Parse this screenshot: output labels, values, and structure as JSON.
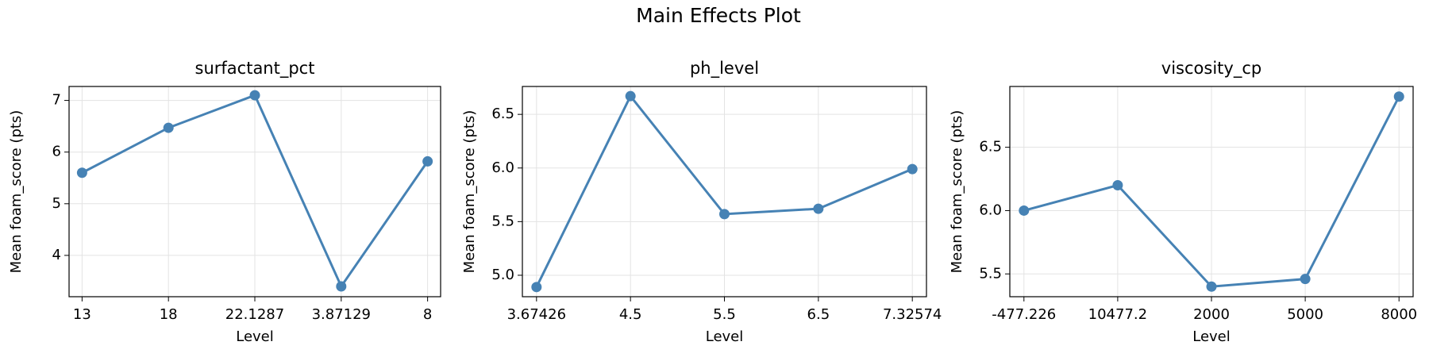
{
  "title": "Main Effects Plot",
  "chart_data": [
    {
      "type": "line",
      "title": "surfactant_pct",
      "xlabel": "Level",
      "ylabel": "Mean foam_score (pts)",
      "categories": [
        "13",
        "18",
        "22.1287",
        "3.87129",
        "8"
      ],
      "values": [
        5.6,
        6.47,
        7.1,
        3.4,
        5.82
      ],
      "color": "#4682b4",
      "ylim": [
        3.2,
        7.27
      ],
      "yticks": [
        4,
        5,
        6,
        7
      ],
      "grid": true
    },
    {
      "type": "line",
      "title": "ph_level",
      "xlabel": "Level",
      "ylabel": "Mean foam_score (pts)",
      "categories": [
        "3.67426",
        "4.5",
        "5.5",
        "6.5",
        "7.32574"
      ],
      "values": [
        4.89,
        6.67,
        5.57,
        5.62,
        5.99
      ],
      "color": "#4682b4",
      "ylim": [
        4.8,
        6.76
      ],
      "yticks": [
        {
          "value": 5,
          "label": "5.0"
        },
        {
          "value": 5.5,
          "label": "5.5"
        },
        {
          "value": 6,
          "label": "6.0"
        },
        {
          "value": 6.5,
          "label": "6.5"
        }
      ],
      "grid": true
    },
    {
      "type": "line",
      "title": "viscosity_cp",
      "xlabel": "Level",
      "ylabel": "Mean foam_score (pts)",
      "categories": [
        "-477.226",
        "10477.2",
        "2000",
        "5000",
        "8000"
      ],
      "values": [
        6.0,
        6.2,
        5.4,
        5.46,
        6.9
      ],
      "color": "#4682b4",
      "ylim": [
        5.32,
        6.98
      ],
      "yticks": [
        {
          "value": 5.5,
          "label": "5.5"
        },
        {
          "value": 6,
          "label": "6.0"
        },
        {
          "value": 6.5,
          "label": "6.5"
        }
      ],
      "grid": true
    }
  ]
}
